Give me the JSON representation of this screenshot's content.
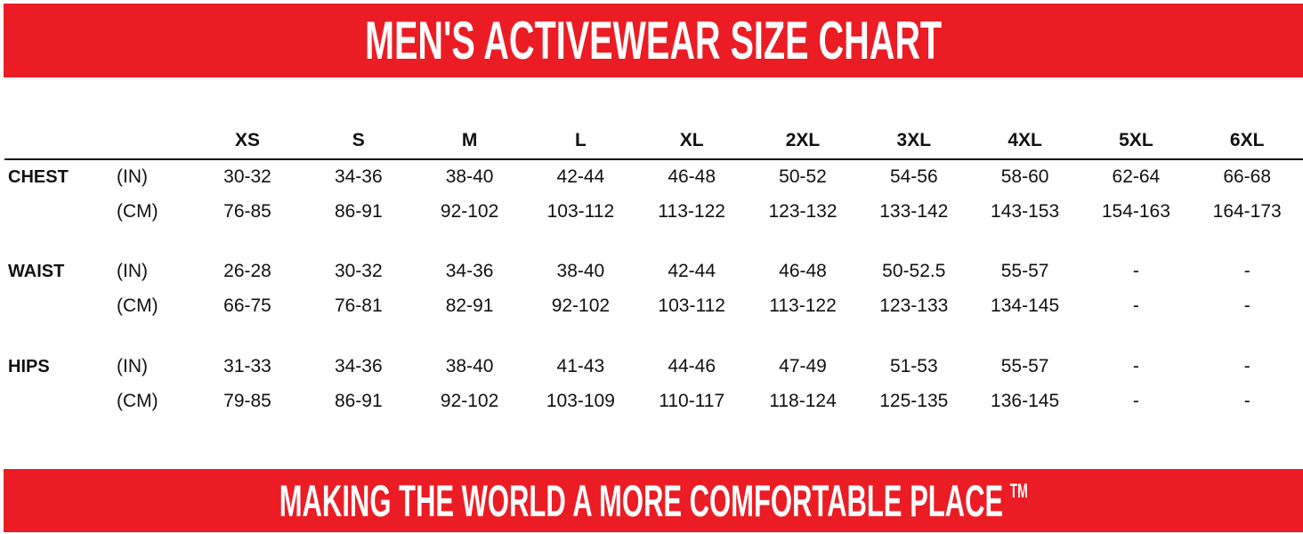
{
  "header": {
    "title": "MEN'S ACTIVEWEAR SIZE CHART"
  },
  "footer": {
    "slogan": "MAKING THE WORLD A MORE COMFORTABLE PLACE",
    "trademark": "TM"
  },
  "colors": {
    "brand_red": "#ec1c24",
    "text": "#111111"
  },
  "sizes": [
    "XS",
    "S",
    "M",
    "L",
    "XL",
    "2XL",
    "3XL",
    "4XL",
    "5XL",
    "6XL"
  ],
  "measurements": [
    {
      "label": "CHEST",
      "rows": [
        {
          "unit": "(IN)",
          "values": [
            "30-32",
            "34-36",
            "38-40",
            "42-44",
            "46-48",
            "50-52",
            "54-56",
            "58-60",
            "62-64",
            "66-68"
          ]
        },
        {
          "unit": "(CM)",
          "values": [
            "76-85",
            "86-91",
            "92-102",
            "103-112",
            "113-122",
            "123-132",
            "133-142",
            "143-153",
            "154-163",
            "164-173"
          ]
        }
      ]
    },
    {
      "label": "WAIST",
      "rows": [
        {
          "unit": "(IN)",
          "values": [
            "26-28",
            "30-32",
            "34-36",
            "38-40",
            "42-44",
            "46-48",
            "50-52.5",
            "55-57",
            "-",
            "-"
          ]
        },
        {
          "unit": "(CM)",
          "values": [
            "66-75",
            "76-81",
            "82-91",
            "92-102",
            "103-112",
            "113-122",
            "123-133",
            "134-145",
            "-",
            "-"
          ]
        }
      ]
    },
    {
      "label": "HIPS",
      "rows": [
        {
          "unit": "(IN)",
          "values": [
            "31-33",
            "34-36",
            "38-40",
            "41-43",
            "44-46",
            "47-49",
            "51-53",
            "55-57",
            "-",
            "-"
          ]
        },
        {
          "unit": "(CM)",
          "values": [
            "79-85",
            "86-91",
            "92-102",
            "103-109",
            "110-117",
            "118-124",
            "125-135",
            "136-145",
            "-",
            "-"
          ]
        }
      ]
    }
  ]
}
